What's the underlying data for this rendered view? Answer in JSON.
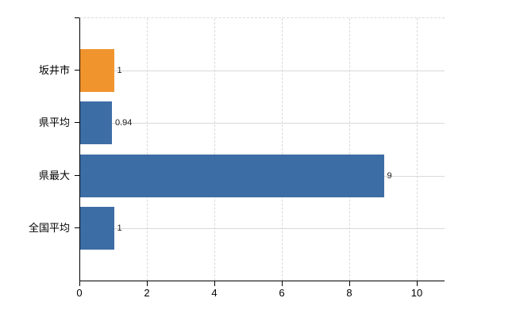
{
  "chart_data": {
    "type": "bar",
    "orientation": "horizontal",
    "title": "",
    "xlabel": "",
    "ylabel": "",
    "categories": [
      "坂井市",
      "県平均",
      "県最大",
      "全国平均"
    ],
    "values": [
      1,
      0.94,
      9,
      1
    ],
    "value_labels": [
      "1",
      "0.94",
      "9",
      "1"
    ],
    "series_colors": [
      "#f0942e",
      "#3d6da5",
      "#3d6da5",
      "#3d6da5"
    ],
    "xlim": [
      0,
      10.8
    ],
    "x_ticks": [
      0,
      2,
      4,
      6,
      8,
      10
    ],
    "x_tick_labels": [
      "0",
      "2",
      "4",
      "6",
      "8",
      "10"
    ],
    "grid": true,
    "legend": false,
    "background_color": "#ffffff",
    "axis_color": "#000000",
    "grid_color": "#d9d9d9",
    "text_color": "#000000"
  }
}
